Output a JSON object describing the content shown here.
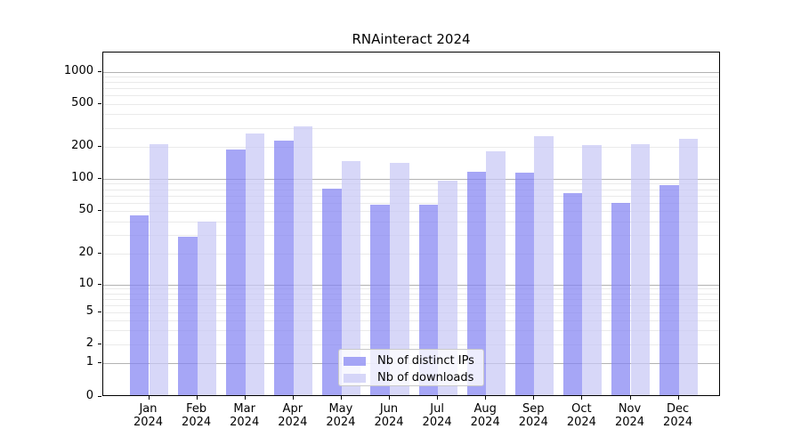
{
  "title": "RNAinteract 2024",
  "chart_data": {
    "type": "bar",
    "title": "RNAinteract 2024",
    "xlabel": "",
    "ylabel": "",
    "categories": [
      "Jan 2024",
      "Feb 2024",
      "Mar 2024",
      "Apr 2024",
      "May 2024",
      "Jun 2024",
      "Jul 2024",
      "Aug 2024",
      "Sep 2024",
      "Oct 2024",
      "Nov 2024",
      "Dec 2024"
    ],
    "series": [
      {
        "name": "Nb of distinct IPs",
        "color": "rgba(132,132,242,0.72)",
        "color_hex": "#a8a8f4",
        "values": [
          46,
          29,
          190,
          227,
          81,
          57,
          57,
          116,
          114,
          74,
          60,
          88
        ]
      },
      {
        "name": "Nb of downloads",
        "color": "rgba(200,200,245,0.72)",
        "color_hex": "#d8d8f8",
        "values": [
          212,
          40,
          265,
          310,
          147,
          140,
          96,
          181,
          250,
          207,
          211,
          237
        ]
      }
    ],
    "y_scale": "symlog",
    "y_ticks": [
      0,
      1,
      2,
      5,
      10,
      20,
      50,
      100,
      200,
      500,
      1000
    ],
    "ylim": [
      0,
      1500
    ],
    "grid": "horizontal major+minor",
    "legend_position": "inside lower center"
  },
  "legend": {
    "items": [
      {
        "label": "Nb of distinct IPs"
      },
      {
        "label": "Nb of downloads"
      }
    ]
  }
}
